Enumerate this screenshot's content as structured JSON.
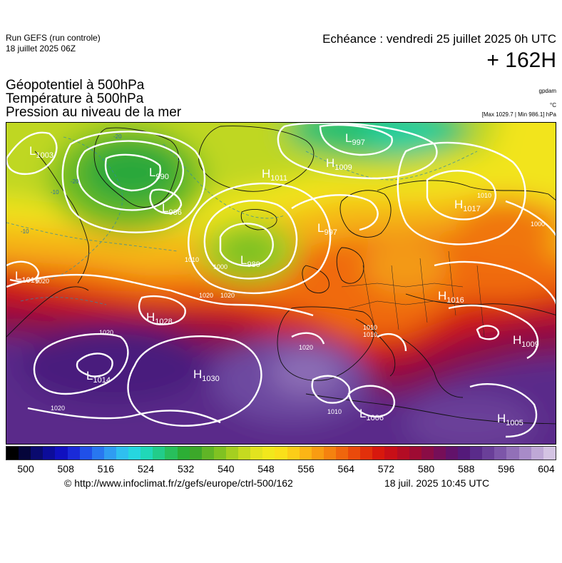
{
  "header": {
    "run_title": "Run GEFS (run controle)",
    "run_date": "18 juillet 2025 06Z",
    "echeance": "Echéance : vendredi 25 juillet 2025 0h UTC",
    "lead_time": "+ 162H"
  },
  "fields": {
    "geopotential": "Géopotentiel à 500hPa",
    "temperature": "Température à 500hPa",
    "pressure": "Pression au niveau de la mer",
    "unit_geopotential": "gpdam",
    "unit_temperature": "°C",
    "unit_pressure": "[Max 1029.7 | Min 986.1] hPa"
  },
  "map": {
    "pressure_centers": [
      {
        "type": "L",
        "value": "1003"
      },
      {
        "type": "L",
        "value": "990"
      },
      {
        "type": "L",
        "value": "986"
      },
      {
        "type": "H",
        "value": "1011"
      },
      {
        "type": "H",
        "value": "1009"
      },
      {
        "type": "L",
        "value": "997"
      },
      {
        "type": "L",
        "value": "997"
      },
      {
        "type": "L",
        "value": "989"
      },
      {
        "type": "H",
        "value": "1017"
      },
      {
        "type": "L",
        "value": "1014"
      },
      {
        "type": "H",
        "value": "1028"
      },
      {
        "type": "H",
        "value": "1016"
      },
      {
        "type": "H",
        "value": "1009"
      },
      {
        "type": "L",
        "value": "1014"
      },
      {
        "type": "H",
        "value": "1030"
      },
      {
        "type": "L",
        "value": "1006"
      },
      {
        "type": "H",
        "value": "1005"
      }
    ],
    "isobar_labels": [
      "1020",
      "1020",
      "1010",
      "1000",
      "1020",
      "1020",
      "1020",
      "1010",
      "1010",
      "1010",
      "1000",
      "1010",
      "1020"
    ],
    "isotherm_labels": [
      "-20",
      "-20",
      "-10",
      "-10"
    ]
  },
  "colorbar": {
    "unit": "gpdam",
    "range": [
      496,
      606
    ],
    "tick_labels": [
      "500",
      "508",
      "516",
      "524",
      "532",
      "540",
      "548",
      "556",
      "564",
      "572",
      "580",
      "588",
      "596",
      "604"
    ],
    "colors": [
      "#000000",
      "#05053a",
      "#0a0a6e",
      "#0c0c9a",
      "#1010c0",
      "#1a2ad8",
      "#2050e8",
      "#2877f0",
      "#2f9cf2",
      "#2fbff0",
      "#26d6e0",
      "#20d8b8",
      "#22cc8a",
      "#28bf5c",
      "#2cae35",
      "#3ca82a",
      "#60b526",
      "#80c222",
      "#a5cf20",
      "#c5da20",
      "#e2e31f",
      "#f2e81c",
      "#fae01a",
      "#fccd18",
      "#fcb515",
      "#f99c12",
      "#f5820f",
      "#f0660d",
      "#ea4a0b",
      "#e2300b",
      "#d8180d",
      "#c80f17",
      "#b30c24",
      "#9e0b33",
      "#8a0c45",
      "#760e58",
      "#62126a",
      "#541a7a",
      "#5a2b8a",
      "#6a3f99",
      "#7d56a9",
      "#9270b8",
      "#a88bc8",
      "#bfa8d6",
      "#d4c4e3"
    ]
  },
  "footer": {
    "credit": "© http://www.infoclimat.fr/z/gefs/europe/ctrl-500/162",
    "timestamp": "18 juil. 2025 10:45 UTC"
  }
}
